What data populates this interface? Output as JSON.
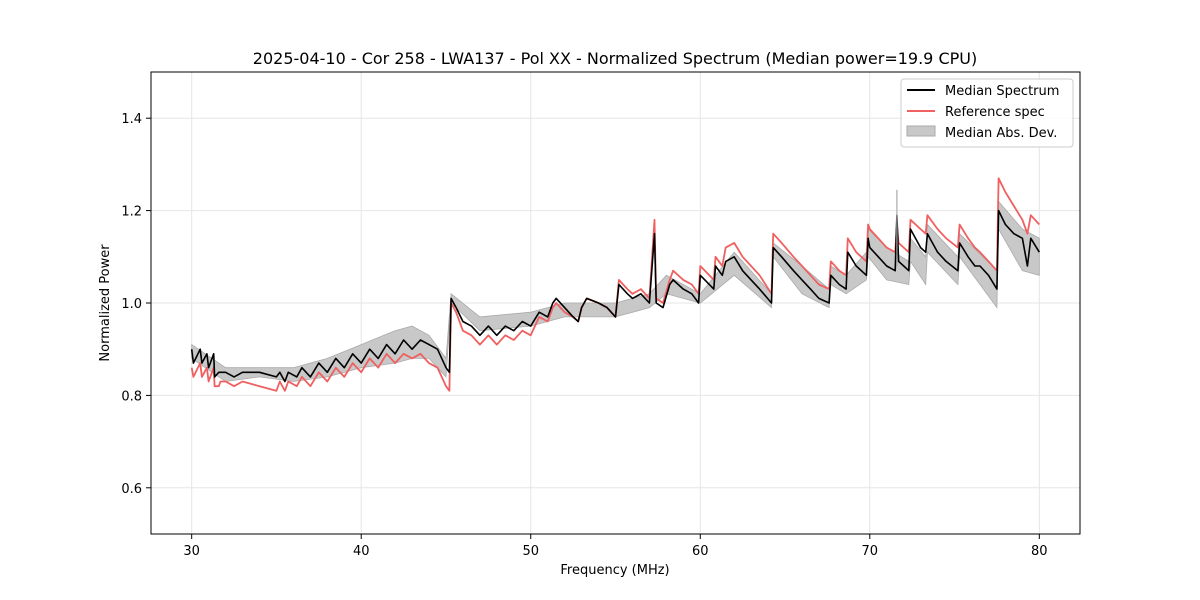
{
  "chart_data": {
    "type": "line",
    "title": "2025-04-10 - Cor 258 - LWA137 - Pol XX - Normalized Spectrum (Median power=19.9 CPU)",
    "xlabel": "Frequency (MHz)",
    "ylabel": "Normalized Power",
    "xlim": [
      27.6,
      82.4
    ],
    "ylim": [
      0.5,
      1.5
    ],
    "xticks": [
      30,
      40,
      50,
      60,
      70,
      80
    ],
    "xtick_labels": [
      "30",
      "40",
      "50",
      "60",
      "70",
      "80"
    ],
    "yticks": [
      0.6,
      0.8,
      1.0,
      1.2,
      1.4
    ],
    "ytick_labels": [
      "0.6",
      "0.8",
      "1.0",
      "1.2",
      "1.4"
    ],
    "grid": true,
    "legend_position": "top-right",
    "legend": {
      "median": "Median Spectrum",
      "reference": "Reference spec",
      "mad": "Median Abs. Dev."
    },
    "colors": {
      "median": "#000000",
      "reference": "#f06060",
      "mad_fill": "#c8c8c8",
      "mad_edge": "#aaaaaa",
      "grid": "#e6e6e6"
    },
    "series": [
      {
        "name": "Median Spectrum",
        "x": [
          30.0,
          30.1,
          30.5,
          30.6,
          30.9,
          31.0,
          31.3,
          31.35,
          31.6,
          31.7,
          32.0,
          32.5,
          33.0,
          34.0,
          35.0,
          35.2,
          35.5,
          35.7,
          36.2,
          36.5,
          37.0,
          37.5,
          38.0,
          38.5,
          39.0,
          39.5,
          40.0,
          40.5,
          41.0,
          41.5,
          42.0,
          42.5,
          43.0,
          43.5,
          44.0,
          44.5,
          45.0,
          45.2,
          45.3,
          45.6,
          46.0,
          46.5,
          47.0,
          47.5,
          48.0,
          48.5,
          49.0,
          49.5,
          50.0,
          50.5,
          51.0,
          51.3,
          51.5,
          52.0,
          52.5,
          52.8,
          53.0,
          53.3,
          54.0,
          54.5,
          55.0,
          55.2,
          55.7,
          56.0,
          56.5,
          57.0,
          57.3,
          57.4,
          57.8,
          58.2,
          58.4,
          59.0,
          59.5,
          59.9,
          60.0,
          60.8,
          60.9,
          61.3,
          61.5,
          62.0,
          62.5,
          63.0,
          63.5,
          64.2,
          64.3,
          64.8,
          65.5,
          66.0,
          66.5,
          67.0,
          67.6,
          67.7,
          68.2,
          68.6,
          68.7,
          69.2,
          69.8,
          69.9,
          70.0,
          70.5,
          71.0,
          71.5,
          71.6,
          71.7,
          72.0,
          72.3,
          72.4,
          73.0,
          73.3,
          73.4,
          74.0,
          74.5,
          75.2,
          75.3,
          75.8,
          76.2,
          76.5,
          77.0,
          77.5,
          77.6,
          78.0,
          78.5,
          79.0,
          79.3,
          79.5,
          80.0
        ],
        "y": [
          0.9,
          0.87,
          0.9,
          0.87,
          0.89,
          0.86,
          0.89,
          0.84,
          0.85,
          0.85,
          0.85,
          0.84,
          0.85,
          0.85,
          0.84,
          0.85,
          0.83,
          0.85,
          0.84,
          0.86,
          0.84,
          0.87,
          0.85,
          0.88,
          0.86,
          0.89,
          0.87,
          0.9,
          0.88,
          0.91,
          0.89,
          0.92,
          0.9,
          0.92,
          0.91,
          0.9,
          0.86,
          0.85,
          1.01,
          0.99,
          0.96,
          0.95,
          0.93,
          0.95,
          0.93,
          0.95,
          0.94,
          0.96,
          0.95,
          0.98,
          0.97,
          1.0,
          1.01,
          0.99,
          0.97,
          0.96,
          0.99,
          1.01,
          1.0,
          0.99,
          0.97,
          1.04,
          1.02,
          1.01,
          1.02,
          1.0,
          1.15,
          1.0,
          0.99,
          1.04,
          1.05,
          1.03,
          1.02,
          1.0,
          1.06,
          1.03,
          1.08,
          1.06,
          1.09,
          1.1,
          1.07,
          1.05,
          1.03,
          1.0,
          1.12,
          1.1,
          1.07,
          1.05,
          1.03,
          1.01,
          1.0,
          1.06,
          1.04,
          1.03,
          1.11,
          1.08,
          1.06,
          1.14,
          1.12,
          1.1,
          1.08,
          1.07,
          1.19,
          1.09,
          1.08,
          1.07,
          1.16,
          1.12,
          1.11,
          1.15,
          1.11,
          1.09,
          1.07,
          1.13,
          1.1,
          1.08,
          1.08,
          1.06,
          1.03,
          1.2,
          1.17,
          1.15,
          1.14,
          1.08,
          1.14,
          1.11
        ]
      },
      {
        "name": "Reference spec",
        "x": [
          30.0,
          30.1,
          30.5,
          30.6,
          30.9,
          31.0,
          31.3,
          31.35,
          31.6,
          31.7,
          32.0,
          32.5,
          33.0,
          34.0,
          35.0,
          35.2,
          35.5,
          35.7,
          36.2,
          36.5,
          37.0,
          37.5,
          38.0,
          38.5,
          39.0,
          39.5,
          40.0,
          40.5,
          41.0,
          41.5,
          42.0,
          42.5,
          43.0,
          43.5,
          44.0,
          44.5,
          45.0,
          45.2,
          45.3,
          45.6,
          46.0,
          46.5,
          47.0,
          47.5,
          48.0,
          48.5,
          49.0,
          49.5,
          50.0,
          50.5,
          51.0,
          51.3,
          51.5,
          52.0,
          52.5,
          52.8,
          53.0,
          53.3,
          54.0,
          54.5,
          55.0,
          55.2,
          55.7,
          56.0,
          56.5,
          57.0,
          57.3,
          57.4,
          57.8,
          58.2,
          58.4,
          59.0,
          59.5,
          59.9,
          60.0,
          60.8,
          60.9,
          61.3,
          61.5,
          62.0,
          62.5,
          63.0,
          63.5,
          64.2,
          64.3,
          64.8,
          65.5,
          66.0,
          66.5,
          67.0,
          67.6,
          67.7,
          68.2,
          68.6,
          68.7,
          69.2,
          69.8,
          69.9,
          70.0,
          70.5,
          71.0,
          71.5,
          71.6,
          71.7,
          72.0,
          72.3,
          72.4,
          73.0,
          73.3,
          73.4,
          74.0,
          74.5,
          75.2,
          75.3,
          75.8,
          76.2,
          76.5,
          77.0,
          77.5,
          77.6,
          78.0,
          78.5,
          79.0,
          79.3,
          79.5,
          80.0
        ],
        "y": [
          0.86,
          0.84,
          0.87,
          0.84,
          0.86,
          0.83,
          0.86,
          0.82,
          0.82,
          0.83,
          0.83,
          0.82,
          0.83,
          0.82,
          0.81,
          0.83,
          0.81,
          0.83,
          0.82,
          0.84,
          0.82,
          0.85,
          0.83,
          0.86,
          0.84,
          0.87,
          0.85,
          0.88,
          0.86,
          0.89,
          0.87,
          0.89,
          0.88,
          0.89,
          0.87,
          0.86,
          0.82,
          0.81,
          1.0,
          0.98,
          0.94,
          0.93,
          0.91,
          0.93,
          0.91,
          0.93,
          0.92,
          0.94,
          0.93,
          0.97,
          0.96,
          0.99,
          1.0,
          0.98,
          0.97,
          0.96,
          0.99,
          1.01,
          1.0,
          0.99,
          0.97,
          1.05,
          1.03,
          1.02,
          1.03,
          1.01,
          1.18,
          1.01,
          1.0,
          1.05,
          1.07,
          1.05,
          1.04,
          1.02,
          1.08,
          1.05,
          1.1,
          1.08,
          1.12,
          1.13,
          1.1,
          1.08,
          1.06,
          1.02,
          1.15,
          1.13,
          1.1,
          1.08,
          1.06,
          1.04,
          1.03,
          1.09,
          1.07,
          1.06,
          1.14,
          1.11,
          1.09,
          1.17,
          1.16,
          1.14,
          1.12,
          1.11,
          1.17,
          1.13,
          1.12,
          1.11,
          1.18,
          1.16,
          1.15,
          1.19,
          1.16,
          1.14,
          1.12,
          1.17,
          1.14,
          1.12,
          1.11,
          1.09,
          1.07,
          1.27,
          1.24,
          1.21,
          1.18,
          1.15,
          1.19,
          1.17
        ]
      }
    ],
    "mad_band": {
      "name": "Median Abs. Dev.",
      "x": [
        30.0,
        32.0,
        34.0,
        36.0,
        38.0,
        40.0,
        42.0,
        43.0,
        44.0,
        45.0,
        45.3,
        47.0,
        50.0,
        52.0,
        55.0,
        57.0,
        58.0,
        60.0,
        62.0,
        64.2,
        64.3,
        66.0,
        67.6,
        67.7,
        68.6,
        69.8,
        69.9,
        71.0,
        72.3,
        72.4,
        73.3,
        73.4,
        75.2,
        75.3,
        77.5,
        77.6,
        79.0,
        80.0
      ],
      "lower": [
        0.88,
        0.83,
        0.84,
        0.83,
        0.84,
        0.86,
        0.87,
        0.88,
        0.88,
        0.84,
        1.0,
        0.94,
        0.95,
        0.97,
        0.97,
        0.99,
        1.02,
        1.0,
        1.06,
        0.99,
        1.1,
        1.02,
        0.99,
        1.04,
        1.02,
        1.05,
        1.1,
        1.05,
        1.04,
        1.09,
        1.04,
        1.11,
        1.04,
        1.1,
        0.99,
        1.16,
        1.07,
        1.06
      ],
      "upper": [
        0.91,
        0.86,
        0.86,
        0.86,
        0.88,
        0.91,
        0.94,
        0.95,
        0.93,
        0.88,
        1.02,
        0.97,
        0.98,
        1.0,
        1.0,
        1.02,
        1.06,
        1.02,
        1.11,
        1.02,
        1.13,
        1.08,
        1.03,
        1.08,
        1.06,
        1.11,
        1.16,
        1.12,
        1.09,
        1.14,
        1.1,
        1.17,
        1.1,
        1.15,
        1.07,
        1.22,
        1.16,
        1.14
      ]
    },
    "spike": {
      "x": 71.6,
      "y_low": 1.08,
      "y_high": 1.245
    }
  }
}
